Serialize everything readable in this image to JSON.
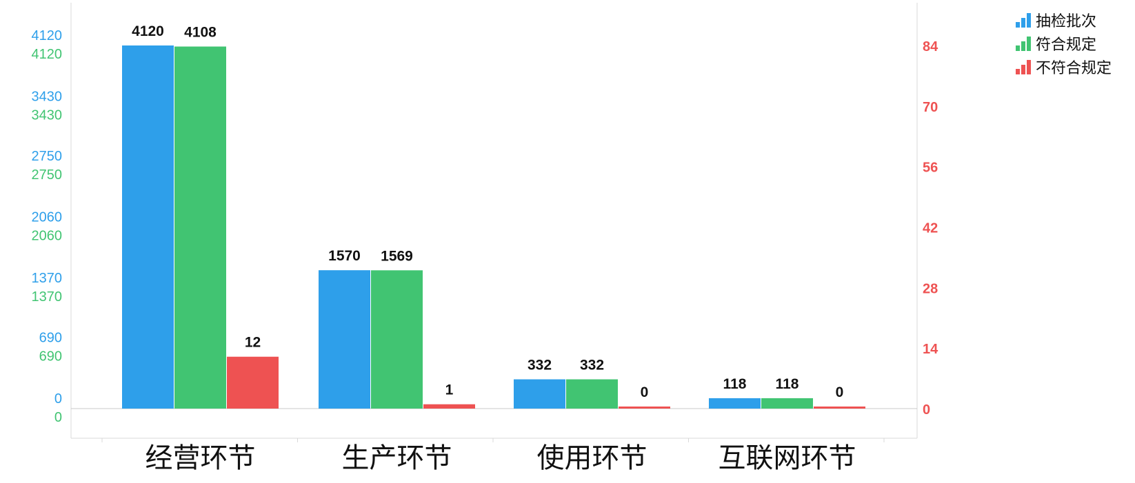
{
  "chart_data": {
    "type": "bar",
    "categories": [
      "经营环节",
      "生产环节",
      "使用环节",
      "互联网环节"
    ],
    "series": [
      {
        "name": "抽检批次",
        "values": [
          4120,
          1570,
          332,
          118
        ],
        "axis": "left",
        "color": "#2e9fea"
      },
      {
        "name": "符合规定",
        "values": [
          4108,
          1569,
          332,
          118
        ],
        "axis": "left",
        "color": "#41c472"
      },
      {
        "name": "不符合规定",
        "values": [
          12,
          1,
          0,
          0
        ],
        "axis": "right",
        "color": "#ee5252"
      }
    ],
    "left_axis": {
      "ylim": [
        0,
        4120
      ],
      "ticks_blue": [
        "4120",
        "3430",
        "2750",
        "2060",
        "1370",
        "690",
        "0"
      ],
      "ticks_green": [
        "4120",
        "3430",
        "2750",
        "2060",
        "1370",
        "690",
        "0"
      ],
      "blue_color": "#2e9fea",
      "green_color": "#41c472"
    },
    "right_axis": {
      "ylim": [
        0,
        84
      ],
      "ticks": [
        "84",
        "70",
        "56",
        "42",
        "28",
        "14",
        "0"
      ],
      "color": "#ee5252"
    },
    "data_labels": [
      [
        "4120",
        "4108",
        "12"
      ],
      [
        "1570",
        "1569",
        "1"
      ],
      [
        "332",
        "332",
        "0"
      ],
      [
        "118",
        "118",
        "0"
      ]
    ],
    "legend_position": "top-right",
    "grid": false
  }
}
